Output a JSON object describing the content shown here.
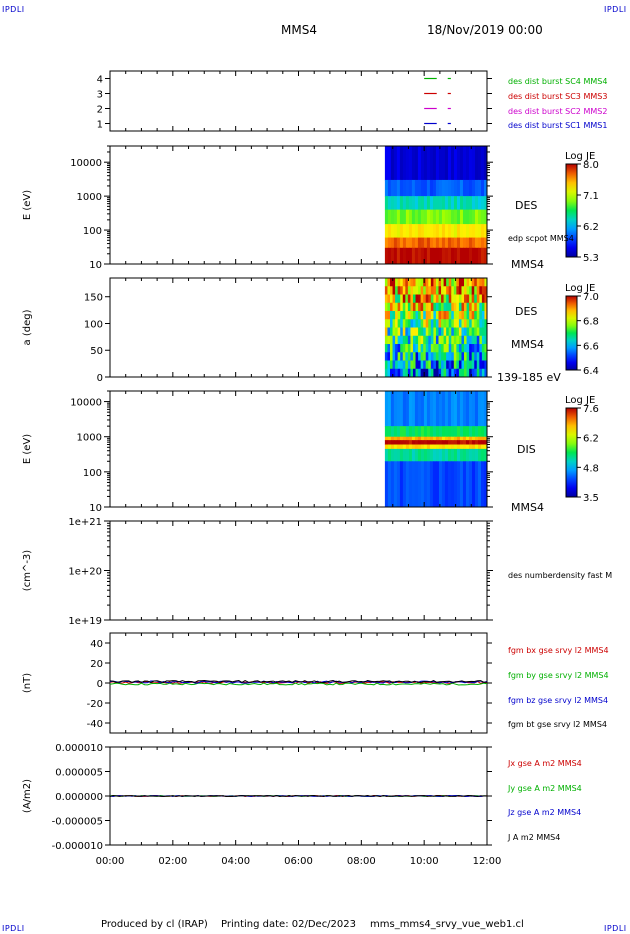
{
  "corner_labels": {
    "top_left": "IPDLI",
    "top_right": "IPDLI",
    "bottom_left": "IPDLI",
    "bottom_right": "IPDLI"
  },
  "header": {
    "title": "MMS4",
    "datetime": "18/Nov/2019 00:00"
  },
  "footer": {
    "produced_by": "Produced by cl (IRAP)",
    "printing_date": "Printing date: 02/Dec/2023",
    "filename": "mms_mms4_srvy_vue_web1.cl"
  },
  "colors": {
    "mms1": "#0000cc",
    "mms2": "#cc00cc",
    "mms3": "#cc0000",
    "mms4": "#00b000",
    "bx": "#cc0000",
    "by": "#00b000",
    "bz": "#0000cc",
    "bt": "#000000"
  },
  "chart_data": [
    {
      "id": "burst",
      "type": "scatter",
      "ylabel": "",
      "yticks": [
        "1",
        "2",
        "3",
        "4"
      ],
      "ylim": [
        0.5,
        4.5
      ],
      "xlim": [
        0,
        12
      ],
      "legend_position": "right",
      "series": [
        {
          "name": "des dist burst SC1 MMS1",
          "color": "#0000cc",
          "y": 1,
          "segments": [
            [
              10.0,
              10.4
            ],
            [
              10.75,
              10.85
            ]
          ]
        },
        {
          "name": "des dist burst SC2 MMS2",
          "color": "#cc00cc",
          "y": 2,
          "segments": [
            [
              10.0,
              10.4
            ],
            [
              10.75,
              10.85
            ]
          ]
        },
        {
          "name": "des dist burst SC3 MMS3",
          "color": "#cc0000",
          "y": 3,
          "segments": [
            [
              10.0,
              10.4
            ],
            [
              10.75,
              10.85
            ]
          ]
        },
        {
          "name": "des dist burst SC4 MMS4",
          "color": "#00b000",
          "y": 4,
          "segments": [
            [
              10.0,
              10.4
            ],
            [
              10.75,
              10.85
            ]
          ]
        }
      ]
    },
    {
      "id": "des_energy",
      "type": "heatmap",
      "ylabel": "E (eV)",
      "yscale": "log",
      "ylim": [
        10,
        30000
      ],
      "yticks": [
        "10",
        "100",
        "1000",
        "10000"
      ],
      "xlim": [
        0,
        12
      ],
      "data_start_hour": 8.75,
      "right_labels": [
        "DES",
        "edp scpot MMS4",
        "MMS4"
      ],
      "colorbar": {
        "title": "Log JE",
        "ticks": [
          "8.0",
          "7.1",
          "6.2",
          "5.3"
        ],
        "range": [
          5.3,
          8.0
        ]
      },
      "bands": [
        {
          "y_from": 3000,
          "y_to": 30000,
          "value": 5.5
        },
        {
          "y_from": 1000,
          "y_to": 3000,
          "value": 5.9
        },
        {
          "y_from": 400,
          "y_to": 1000,
          "value": 6.4
        },
        {
          "y_from": 150,
          "y_to": 400,
          "value": 6.9
        },
        {
          "y_from": 60,
          "y_to": 150,
          "value": 7.3
        },
        {
          "y_from": 30,
          "y_to": 60,
          "value": 7.7
        },
        {
          "y_from": 10,
          "y_to": 30,
          "value": 8.0
        }
      ]
    },
    {
      "id": "des_pitch",
      "type": "heatmap",
      "ylabel": "a (deg)",
      "yscale": "linear",
      "ylim": [
        0,
        185
      ],
      "yticks": [
        "0",
        "50",
        "100",
        "150"
      ],
      "xlim": [
        0,
        12
      ],
      "data_start_hour": 8.75,
      "right_labels": [
        "DES",
        "MMS4",
        "139-185 eV"
      ],
      "colorbar": {
        "title": "Log JE",
        "ticks": [
          "7.0",
          "6.8",
          "6.6",
          "6.4"
        ],
        "range": [
          6.4,
          7.0
        ]
      }
    },
    {
      "id": "dis_energy",
      "type": "heatmap",
      "ylabel": "E (eV)",
      "yscale": "log",
      "ylim": [
        10,
        20000
      ],
      "yticks": [
        "10",
        "100",
        "1000",
        "10000"
      ],
      "xlim": [
        0,
        12
      ],
      "data_start_hour": 8.75,
      "right_labels": [
        "DIS",
        "MMS4"
      ],
      "colorbar": {
        "title": "Log JE",
        "ticks": [
          "7.6",
          "6.2",
          "4.8",
          "3.5"
        ],
        "range": [
          3.5,
          7.6
        ]
      },
      "bands": [
        {
          "y_from": 2000,
          "y_to": 20000,
          "value": 4.6
        },
        {
          "y_from": 1000,
          "y_to": 2000,
          "value": 5.5
        },
        {
          "y_from": 800,
          "y_to": 1000,
          "value": 6.8
        },
        {
          "y_from": 600,
          "y_to": 800,
          "value": 7.6
        },
        {
          "y_from": 450,
          "y_to": 600,
          "value": 6.6
        },
        {
          "y_from": 200,
          "y_to": 450,
          "value": 5.3
        },
        {
          "y_from": 10,
          "y_to": 200,
          "value": 4.3
        }
      ]
    },
    {
      "id": "density",
      "type": "line",
      "ylabel": "(cm^-3)",
      "yscale": "log",
      "ylim": [
        1e+19,
        1e+21
      ],
      "yticks": [
        "1e+19",
        "1e+20",
        "1e+21"
      ],
      "xlim": [
        0,
        12
      ],
      "legend_position": "right",
      "series": [
        {
          "name": "des numberdensity fast M",
          "color": "#000000",
          "values": []
        }
      ]
    },
    {
      "id": "fgm",
      "type": "line",
      "ylabel": "(nT)",
      "ylim": [
        -50,
        50
      ],
      "yticks": [
        "-40",
        "-20",
        "0",
        "20",
        "40"
      ],
      "xlim": [
        0,
        12
      ],
      "legend_position": "right",
      "series": [
        {
          "name": "fgm bx gse srvy l2 MMS4",
          "color": "#cc0000",
          "approx_value": 0.5
        },
        {
          "name": "fgm by gse srvy l2 MMS4",
          "color": "#00b000",
          "approx_value": -1
        },
        {
          "name": "fgm bz gse srvy l2 MMS4",
          "color": "#0000cc",
          "approx_value": 1
        },
        {
          "name": "fgm bt gse srvy l2 MMS4",
          "color": "#000000",
          "approx_value": 1.5
        }
      ]
    },
    {
      "id": "current",
      "type": "line",
      "ylabel": "(A/m2)",
      "ylim": [
        -1e-05,
        1e-05
      ],
      "yticks": [
        "-0.000010",
        "-0.000005",
        "0.000000",
        "0.000005",
        "0.000010"
      ],
      "xlim": [
        0,
        12
      ],
      "xticks": [
        "00:00",
        "02:00",
        "04:00",
        "06:00",
        "08:00",
        "10:00",
        "12:00"
      ],
      "legend_position": "right",
      "series": [
        {
          "name": "Jx gse A m2 MMS4",
          "color": "#cc0000",
          "approx_value": 0
        },
        {
          "name": "Jy gse A m2 MMS4",
          "color": "#00b000",
          "approx_value": 0
        },
        {
          "name": "Jz gse A m2 MMS4",
          "color": "#0000cc",
          "approx_value": 0
        },
        {
          "name": "J A m2 MMS4",
          "color": "#000000",
          "approx_value": 0
        }
      ]
    }
  ]
}
